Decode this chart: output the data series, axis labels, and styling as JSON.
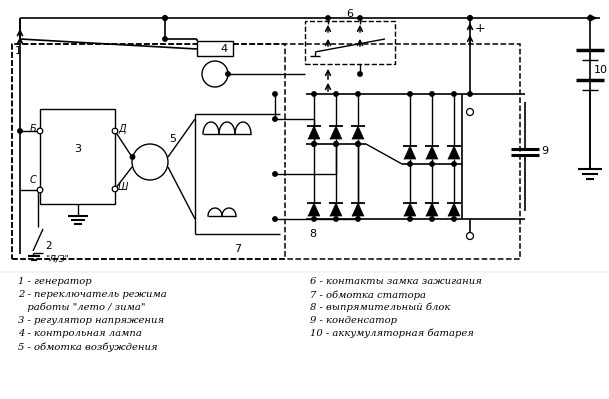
{
  "bg": "#ffffff",
  "lc": "#000000",
  "legend_left": [
    "1 - генератор",
    "2 - переключатель режима",
    "    работы \"лето / зима\"",
    "3 - регулятор напряжения",
    "4 - контрольная лампа",
    "5 - обмотка возбуждения"
  ],
  "legend_right": [
    "6 - контакты замка зажигания",
    "7 - обмотка статора",
    "8 - выпрямительный блок",
    "9 - конденсатор",
    "10 - аккумуляторная батарея"
  ]
}
